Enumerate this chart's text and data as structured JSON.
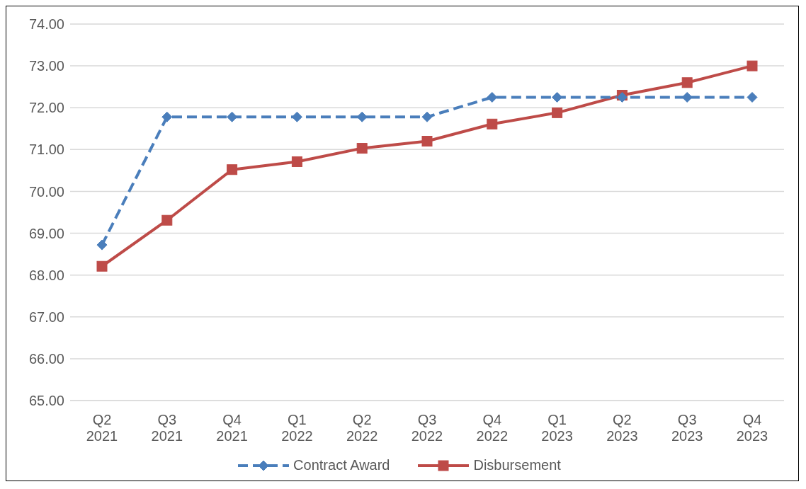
{
  "chart_data": {
    "type": "line",
    "categories": [
      "Q2\n2021",
      "Q3\n2021",
      "Q4\n2021",
      "Q1\n2022",
      "Q2\n2022",
      "Q3\n2022",
      "Q4\n2022",
      "Q1\n2023",
      "Q2\n2023",
      "Q3\n2023",
      "Q4\n2023"
    ],
    "series": [
      {
        "name": "Contract Award",
        "color": "#4a7ebb",
        "marker": "diamond",
        "line_style": "dashed",
        "values": [
          68.72,
          71.78,
          71.78,
          71.78,
          71.78,
          71.78,
          72.25,
          72.25,
          72.25,
          72.25,
          72.25
        ]
      },
      {
        "name": "Disbursement",
        "color": "#be4b48",
        "marker": "square",
        "line_style": "solid",
        "values": [
          68.21,
          69.31,
          70.52,
          70.71,
          71.03,
          71.2,
          71.61,
          71.88,
          72.3,
          72.6,
          73.0
        ]
      }
    ],
    "ylim": [
      65,
      74
    ],
    "yticks": [
      {
        "value": 65,
        "label": "65.00"
      },
      {
        "value": 66,
        "label": "66.00"
      },
      {
        "value": 67,
        "label": "67.00"
      },
      {
        "value": 68,
        "label": "68.00"
      },
      {
        "value": 69,
        "label": "69.00"
      },
      {
        "value": 70,
        "label": "70.00"
      },
      {
        "value": 71,
        "label": "71.00"
      },
      {
        "value": 72,
        "label": "72.00"
      },
      {
        "value": 73,
        "label": "73.00"
      },
      {
        "value": 74,
        "label": "74.00"
      }
    ],
    "grid": "y",
    "legend": "bottom"
  }
}
